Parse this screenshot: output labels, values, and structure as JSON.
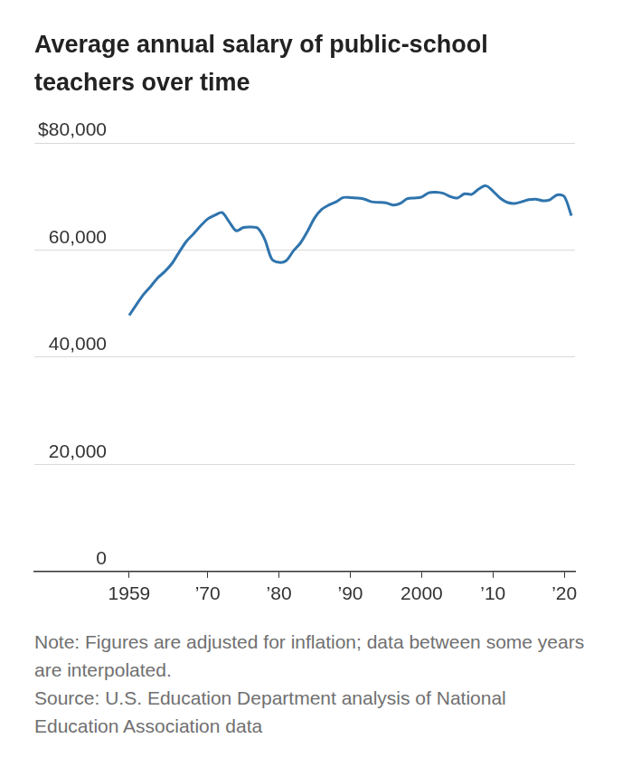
{
  "chart_data": {
    "type": "line",
    "title": "Average annual salary of public-school teachers over time",
    "note": "Note: Figures are adjusted for inflation; data between some years are interpolated.",
    "source": "Source: U.S. Education Department analysis of National Education Association data",
    "x": [
      1959,
      1960,
      1961,
      1962,
      1963,
      1964,
      1965,
      1966,
      1967,
      1968,
      1969,
      1970,
      1971,
      1972,
      1973,
      1974,
      1975,
      1976,
      1977,
      1978,
      1979,
      1980,
      1981,
      1982,
      1983,
      1984,
      1985,
      1986,
      1987,
      1988,
      1989,
      1990,
      1991,
      1992,
      1993,
      1994,
      1995,
      1996,
      1997,
      1998,
      1999,
      2000,
      2001,
      2002,
      2003,
      2004,
      2005,
      2006,
      2007,
      2008,
      2009,
      2010,
      2011,
      2012,
      2013,
      2014,
      2015,
      2016,
      2017,
      2018,
      2019,
      2020,
      2021
    ],
    "values": [
      47800,
      49800,
      51700,
      53200,
      54800,
      56000,
      57500,
      59600,
      61600,
      63000,
      64500,
      65800,
      66500,
      67000,
      65300,
      63600,
      64200,
      64300,
      64100,
      62000,
      58300,
      57700,
      58000,
      59800,
      61300,
      63500,
      66000,
      67600,
      68400,
      69000,
      69800,
      69800,
      69700,
      69500,
      69000,
      68900,
      68800,
      68400,
      68700,
      69600,
      69700,
      69900,
      70700,
      70800,
      70600,
      70000,
      69700,
      70500,
      70400,
      71400,
      72000,
      71000,
      69700,
      68900,
      68700,
      69000,
      69400,
      69500,
      69200,
      69400,
      70300,
      70000,
      66400
    ],
    "color": "#2f74ad",
    "xlim": [
      1945.7,
      2021.5
    ],
    "xticks": [
      {
        "value": 1959,
        "label": "1959"
      },
      {
        "value": 1970,
        "label": "’70"
      },
      {
        "value": 1980,
        "label": "’80"
      },
      {
        "value": 1990,
        "label": "’90"
      },
      {
        "value": 2000,
        "label": "2000"
      },
      {
        "value": 2010,
        "label": "’10"
      },
      {
        "value": 2020,
        "label": "’20"
      }
    ],
    "ylim": [
      0,
      80000
    ],
    "yticks": [
      0,
      {
        "value": 20000,
        "label": "20,000"
      },
      {
        "value": 40000,
        "label": "40,000"
      },
      {
        "value": 60000,
        "label": "60,000"
      },
      {
        "value": 80000,
        "label": "$80,000"
      }
    ],
    "grid": true
  }
}
